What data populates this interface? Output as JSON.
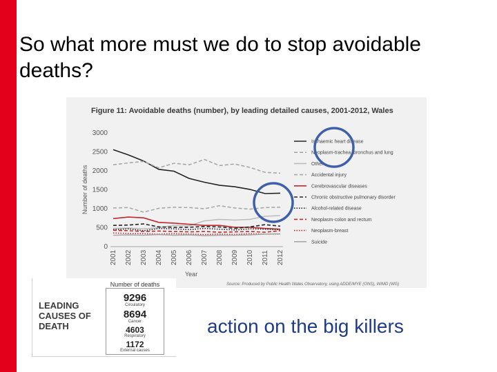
{
  "slide": {
    "title": "So what more must we do to stop avoidable deaths?",
    "tagline": "action on the big killers",
    "accent_color": "#e2001a",
    "tagline_color": "#1e3a8a"
  },
  "chart_data": {
    "type": "line",
    "title": "Figure 11: Avoidable deaths (number), by leading detailed causes, 2001-2012, Wales",
    "xlabel": "Year",
    "ylabel": "Number of deaths",
    "source": "Source: Produced by Public Health Wales Observatory, using ADDE/MYE (ONS), WIMD (WG)",
    "x": [
      "2001",
      "2002",
      "2003",
      "2004",
      "2005",
      "2006",
      "2007",
      "2008",
      "2009",
      "2010",
      "2011",
      "2012"
    ],
    "ylim": [
      0,
      3000
    ],
    "yticks": [
      "0",
      "500",
      "1000",
      "1500",
      "2000",
      "2500",
      "3000"
    ],
    "legend_position": "right",
    "grid": false,
    "series": [
      {
        "name": "Ischaemic heart disease",
        "color": "#222222",
        "dash": "solid",
        "values": [
          2560,
          2420,
          2260,
          2040,
          1990,
          1800,
          1700,
          1620,
          1580,
          1510,
          1400,
          1410
        ]
      },
      {
        "name": "Neoplasm-trachea, bronchus and lung",
        "color": "#a8a8a8",
        "dash": "dashed",
        "values": [
          2160,
          2210,
          2250,
          2080,
          2200,
          2160,
          2300,
          2140,
          2180,
          2090,
          1960,
          1940
        ]
      },
      {
        "name": "Other",
        "color": "#bdbdbd",
        "dash": "solid",
        "values": [
          480,
          490,
          470,
          500,
          560,
          550,
          680,
          720,
          700,
          720,
          800,
          820
        ]
      },
      {
        "name": "Accidental injury",
        "color": "#a8a8a8",
        "dash": "dashed",
        "values": [
          1020,
          1030,
          910,
          1010,
          1040,
          1030,
          1000,
          1080,
          1020,
          990,
          1030,
          1040
        ]
      },
      {
        "name": "Cerebrovascular diseases",
        "color": "#c0282e",
        "dash": "solid",
        "values": [
          740,
          780,
          760,
          640,
          620,
          590,
          560,
          560,
          510,
          510,
          480,
          460
        ]
      },
      {
        "name": "Chronic obstructive pulmonary disorder",
        "color": "#222222",
        "dash": "dashed",
        "values": [
          560,
          570,
          600,
          520,
          510,
          510,
          530,
          520,
          480,
          520,
          580,
          540
        ]
      },
      {
        "name": "Alcohol-related disease",
        "color": "#222222",
        "dash": "dotted",
        "values": [
          450,
          470,
          420,
          480,
          470,
          450,
          480,
          460,
          440,
          470,
          460,
          450
        ]
      },
      {
        "name": "Neoplasm-colon and rectum",
        "color": "#c0282e",
        "dash": "dashed",
        "values": [
          430,
          420,
          400,
          410,
          400,
          390,
          400,
          380,
          390,
          400,
          380,
          420
        ]
      },
      {
        "name": "Neoplasm-breast",
        "color": "#c0282e",
        "dash": "dotted",
        "values": [
          360,
          350,
          340,
          330,
          340,
          330,
          320,
          330,
          320,
          340,
          330,
          330
        ]
      },
      {
        "name": "Suicide",
        "color": "#a8a8a8",
        "dash": "solid",
        "values": [
          300,
          310,
          300,
          320,
          300,
          310,
          290,
          300,
          300,
          310,
          330,
          340
        ]
      }
    ]
  },
  "leading_causes": {
    "label": "LEADING\nCAUSES OF\nDEATH",
    "header": "Number of deaths",
    "items": [
      {
        "value": "9296",
        "label": "Circulatory"
      },
      {
        "value": "8694",
        "label": "Cancer"
      },
      {
        "value": "4603",
        "label": "Respiratory"
      },
      {
        "value": "1172",
        "label": "External causes"
      }
    ]
  }
}
